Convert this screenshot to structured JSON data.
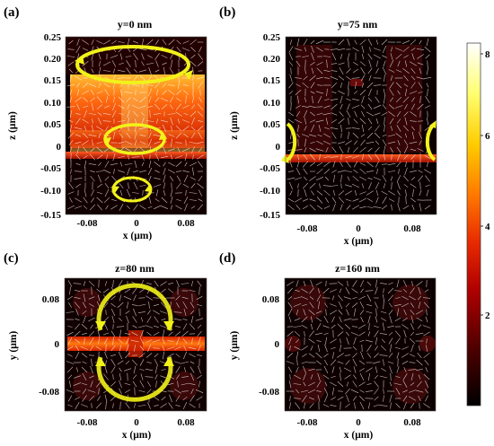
{
  "panels": [
    {
      "letter": "(a)",
      "title": "y=0 nm",
      "xlabel": "x (μm)",
      "ylabel": "z (μm)",
      "xticks": [
        "-0.08",
        "0",
        "0.08"
      ],
      "yticks": [
        "0.25",
        "0.20",
        "0.15",
        "0.10",
        "0.05",
        "0",
        "-0.05",
        "-0.10",
        "-0.15"
      ]
    },
    {
      "letter": "(b)",
      "title": "y=75 nm",
      "xlabel": "x (μm)",
      "ylabel": "z (μm)",
      "xticks": [
        "-0.08",
        "0",
        "0.08"
      ],
      "yticks": [
        "0.25",
        "0.20",
        "0.15",
        "0.10",
        "0.05",
        "0",
        "-0.05",
        "-0.10",
        "-0.15"
      ]
    },
    {
      "letter": "(c)",
      "title": "z=80 nm",
      "xlabel": "x (μm)",
      "ylabel": "y (μm)",
      "xticks": [
        "-0.08",
        "0",
        "0.08"
      ],
      "yticks": [
        "0.08",
        "0",
        "-0.08"
      ]
    },
    {
      "letter": "(d)",
      "title": "z=160 nm",
      "xlabel": "x (μm)",
      "ylabel": "y (μm)",
      "xticks": [
        "-0.08",
        "0",
        "0.08"
      ],
      "yticks": [
        "0.08",
        "0",
        "-0.08"
      ]
    }
  ],
  "colorbar": {
    "ticks": [
      "8",
      "6",
      "4",
      "2"
    ],
    "colormap": [
      "#000000",
      "#5a0000",
      "#b00000",
      "#e83000",
      "#ff7a00",
      "#ffc800",
      "#ffff80",
      "#ffffff"
    ]
  },
  "colors": {
    "arrow_yellow": "#f2f21a",
    "field_red": "#d81e00",
    "field_orange": "#ff8a20",
    "vector_white": "#ffffff"
  }
}
